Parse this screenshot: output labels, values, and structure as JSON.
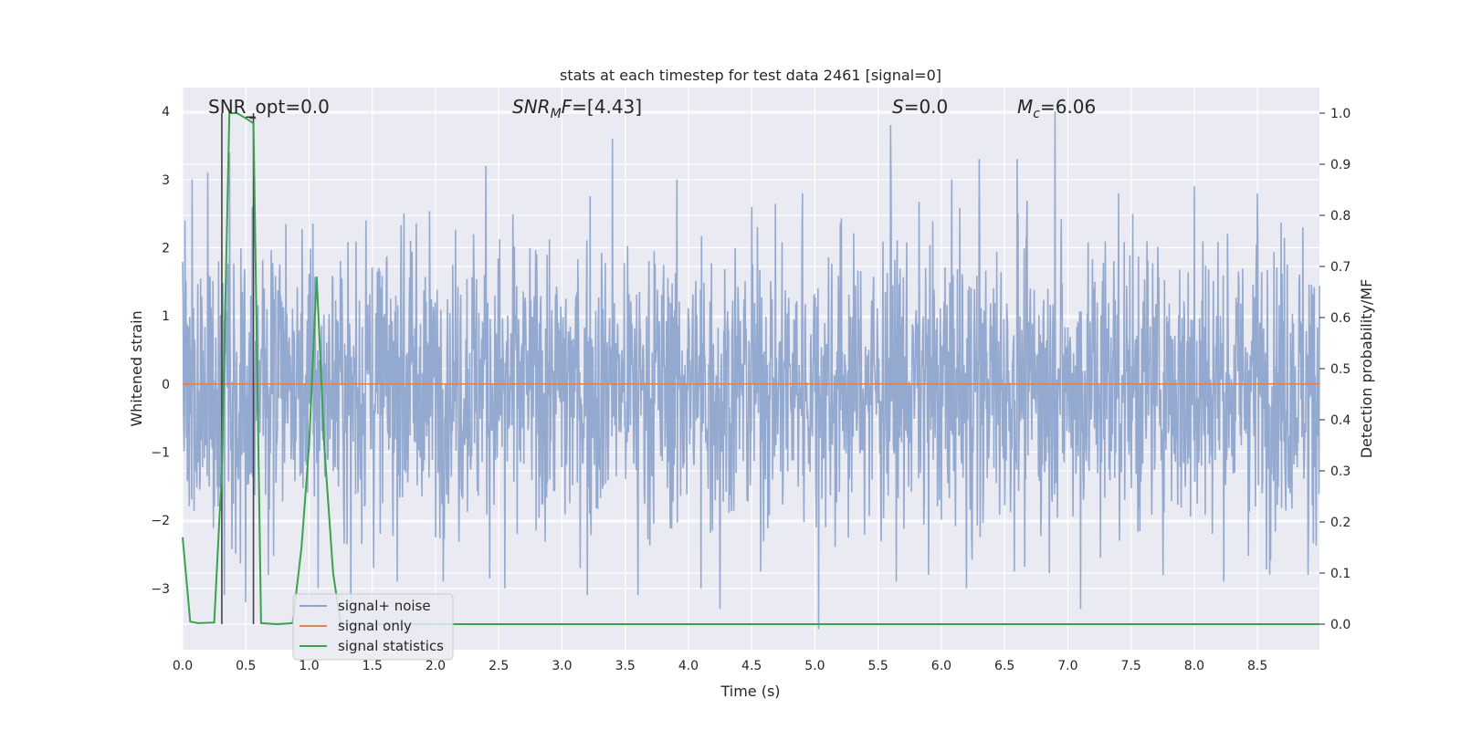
{
  "chart_data": {
    "type": "line",
    "title": "stats at each timestep for test data 2461 [signal=0]",
    "xlabel": "Time (s)",
    "ylabel": "Whitened strain",
    "ylabel_right": "Detection probability/MF",
    "xlim": [
      0.0,
      8.99
    ],
    "ylim": [
      -3.9,
      4.35
    ],
    "ylim_right": [
      -0.05,
      1.05
    ],
    "x_ticks": [
      "0.0",
      "0.5",
      "1.0",
      "1.5",
      "2.0",
      "2.5",
      "3.0",
      "3.5",
      "4.0",
      "4.5",
      "5.0",
      "5.5",
      "6.0",
      "6.5",
      "7.0",
      "7.5",
      "8.0",
      "8.5"
    ],
    "y_ticks": [
      "−3",
      "−2",
      "−1",
      "0",
      "1",
      "2",
      "3",
      "4"
    ],
    "y_right_ticks": [
      "0.0",
      "0.1",
      "0.2",
      "0.3",
      "0.4",
      "0.5",
      "0.6",
      "0.7",
      "0.8",
      "0.9",
      "1.0"
    ],
    "grid": true,
    "legend_position": "lower-left",
    "annotations": {
      "snr_opt": "SNR_opt=0.0",
      "snr_mf": "=[4.43]",
      "snr_mf_sym": "SNR",
      "snr_mf_sub": "M",
      "snr_mf_tail": "F",
      "s_sym": "S",
      "s_val": "=0.0",
      "mc_sym": "M",
      "mc_sub": "c",
      "mc_val": "=6.06"
    },
    "vertical_markers_x": [
      0.31,
      0.56
    ],
    "series": [
      {
        "name": "signal+ noise",
        "color": "#8fa5cc",
        "description": "dense whitened noise, approximately Gaussian around 0, peak excursions between -3.6 and 4.0",
        "peaks": [
          [
            0.02,
            2.4
          ],
          [
            0.2,
            3.1
          ],
          [
            0.33,
            -3.1
          ],
          [
            0.37,
            3.4
          ],
          [
            0.5,
            -3.2
          ],
          [
            0.55,
            2.6
          ],
          [
            0.68,
            -2.8
          ],
          [
            1.07,
            -3.0
          ],
          [
            1.33,
            -3.3
          ],
          [
            1.45,
            2.4
          ],
          [
            1.75,
            2.5
          ],
          [
            2.3,
            2.2
          ],
          [
            2.4,
            3.2
          ],
          [
            2.55,
            -3.0
          ],
          [
            3.2,
            -3.1
          ],
          [
            3.4,
            3.6
          ],
          [
            3.6,
            -3.1
          ],
          [
            4.1,
            -3.0
          ],
          [
            4.25,
            -3.3
          ],
          [
            4.5,
            2.6
          ],
          [
            4.9,
            2.8
          ],
          [
            5.03,
            -3.6
          ],
          [
            5.6,
            3.8
          ],
          [
            5.9,
            -2.8
          ],
          [
            6.2,
            -3.0
          ],
          [
            6.3,
            3.3
          ],
          [
            6.6,
            3.3
          ],
          [
            6.9,
            4.0
          ],
          [
            7.1,
            -3.3
          ],
          [
            7.4,
            2.8
          ],
          [
            8.0,
            2.9
          ],
          [
            8.5,
            2.8
          ],
          [
            8.9,
            2.6
          ],
          [
            8.9,
            -2.8
          ]
        ]
      },
      {
        "name": "signal only",
        "color": "#dd8452",
        "x": [
          0.0,
          8.99
        ],
        "y": [
          0.0,
          0.0
        ]
      },
      {
        "name": "signal statistics",
        "color": "#3ba150",
        "axis": "right",
        "x": [
          0.0,
          0.06,
          0.12,
          0.25,
          0.31,
          0.37,
          0.43,
          0.5,
          0.56,
          0.62,
          0.75,
          0.87,
          0.94,
          1.0,
          1.06,
          1.12,
          1.19,
          1.25,
          1.31,
          8.99
        ],
        "y": [
          0.17,
          0.005,
          0.002,
          0.003,
          0.3,
          1.0,
          1.0,
          0.99,
          0.98,
          0.002,
          0.0,
          0.002,
          0.15,
          0.35,
          0.68,
          0.35,
          0.1,
          0.0,
          0.0,
          0.0
        ]
      }
    ]
  }
}
